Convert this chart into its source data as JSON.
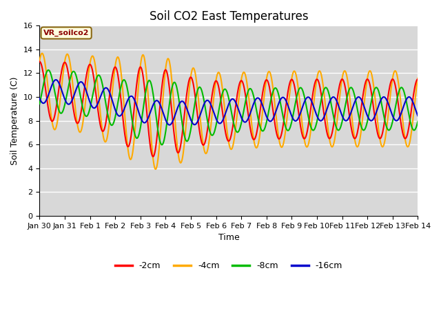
{
  "title": "Soil CO2 East Temperatures",
  "xlabel": "Time",
  "ylabel": "Soil Temperature (C)",
  "legend_label": "VR_soilco2",
  "series_labels": [
    "-2cm",
    "-4cm",
    "-8cm",
    "-16cm"
  ],
  "series_colors": [
    "#ff0000",
    "#ffaa00",
    "#00bb00",
    "#0000cc"
  ],
  "ylim": [
    0,
    16
  ],
  "xtick_labels": [
    "Jan 30",
    "Jan 31",
    "Feb 1",
    "Feb 2",
    "Feb 3",
    "Feb 4",
    "Feb 5",
    "Feb 6",
    "Feb 7",
    "Feb 8",
    "Feb 9",
    "Feb 10",
    "Feb 11",
    "Feb 12",
    "Feb 13",
    "Feb 14"
  ],
  "background_color": "#d8d8d8",
  "title_fontsize": 12,
  "axis_label_fontsize": 9,
  "tick_fontsize": 8,
  "linewidth": 1.5
}
